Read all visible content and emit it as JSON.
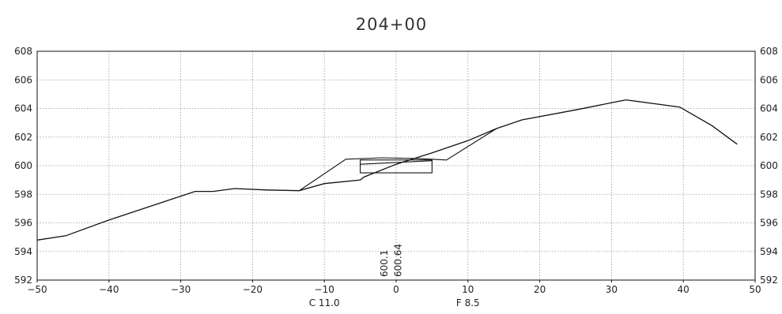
{
  "chart_data": {
    "type": "line",
    "title": "204+00",
    "xlabel": "",
    "ylabel": "",
    "xlim": [
      -50,
      50
    ],
    "ylim": [
      592,
      608
    ],
    "grid": true,
    "x_ticks": [
      -50,
      -40,
      -30,
      -20,
      -10,
      0,
      10,
      20,
      30,
      40,
      50
    ],
    "x_tick_labels": [
      "−50",
      "−40",
      "−30",
      "−20",
      "−10",
      "0",
      "10",
      "20",
      "30",
      "40",
      "50"
    ],
    "y_ticks": [
      592,
      594,
      596,
      598,
      600,
      602,
      604,
      606,
      608
    ],
    "y_tick_labels": [
      "592",
      "594",
      "596",
      "598",
      "600",
      "602",
      "604",
      "606",
      "608"
    ],
    "right_y_tick_labels": [
      "592",
      "594",
      "596",
      "598",
      "600",
      "602",
      "604",
      "606",
      "608"
    ],
    "series": [
      {
        "x": [
          -50,
          -46,
          -40,
          -34,
          -28,
          -25.5,
          -22.5,
          -18,
          -13.5,
          -10,
          -5,
          -4.5,
          0,
          5,
          10,
          14,
          17.5,
          25,
          32,
          39.5,
          44,
          47.5
        ],
        "y": [
          594.8,
          595.1,
          596.2,
          597.2,
          598.2,
          598.2,
          598.4,
          598.3,
          598.25,
          598.75,
          599.0,
          599.2,
          600.1,
          600.9,
          601.75,
          602.6,
          603.2,
          603.9,
          604.6,
          604.1,
          602.8,
          601.5
        ]
      },
      {
        "x": [
          -13.5,
          -7,
          -2,
          3,
          7,
          14
        ],
        "y": [
          598.25,
          600.45,
          600.55,
          600.5,
          600.4,
          602.6
        ]
      }
    ],
    "pavement_box": {
      "x": [
        -5,
        5
      ],
      "y": [
        599.5,
        600.4
      ]
    },
    "pavement_line": {
      "x": [
        -5,
        5
      ],
      "y": [
        600.1,
        600.35
      ]
    },
    "annotations": [
      {
        "text": "600.1",
        "x": -1.2,
        "y": 592,
        "orientation": "vertical"
      },
      {
        "text": "600.64",
        "x": 0.7,
        "y": 592,
        "orientation": "vertical"
      },
      {
        "text": "C 11.0",
        "x": -10,
        "y": 592,
        "position": "below-axis"
      },
      {
        "text": "F 8.5",
        "x": 10,
        "y": 592,
        "position": "below-axis"
      }
    ]
  }
}
